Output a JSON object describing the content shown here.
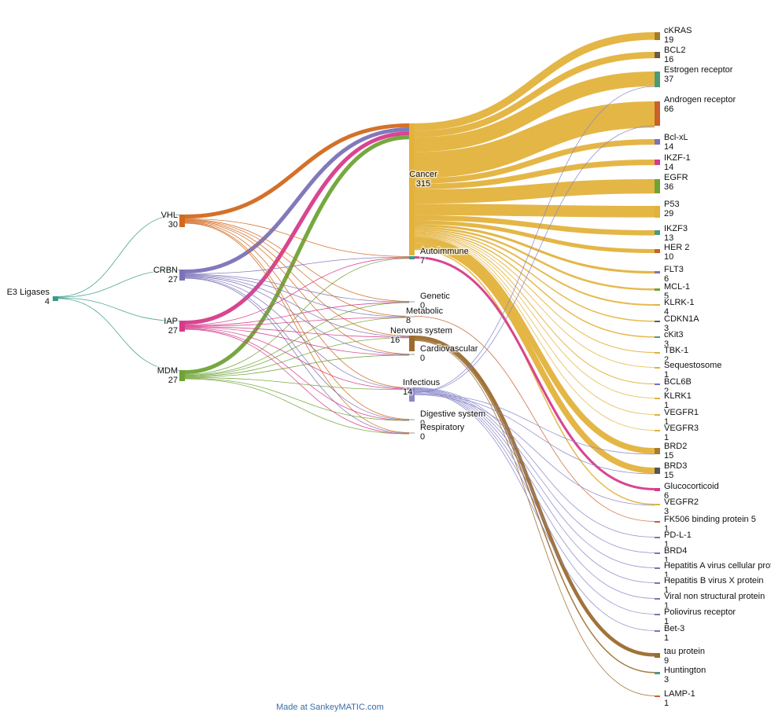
{
  "footer": {
    "credit": "Made at SankeyMATIC.com"
  },
  "diagram": {
    "type": "sankey",
    "nodes": [
      {
        "id": "e3",
        "label": "E3 Ligases",
        "value": "4",
        "color": "#3a9a8a"
      },
      {
        "id": "vhl",
        "label": "VHL",
        "value": "30",
        "color": "#d2691e"
      },
      {
        "id": "crbn",
        "label": "CRBN",
        "value": "27",
        "color": "#7b72b8"
      },
      {
        "id": "iap",
        "label": "IAP",
        "value": "27",
        "color": "#d63b8a"
      },
      {
        "id": "mdm",
        "label": "MDM",
        "value": "27",
        "color": "#6fa336"
      },
      {
        "id": "cancer",
        "label": "Cancer",
        "value": "315",
        "color": "#e3b23c"
      },
      {
        "id": "autoimmune",
        "label": "Autoimmune",
        "value": "7",
        "color": "#3a9a8a"
      },
      {
        "id": "genetic",
        "label": "Genetic",
        "value": "0",
        "color": "#cccccc"
      },
      {
        "id": "metabolic",
        "label": "Metabolic",
        "value": "8",
        "color": "#cccccc"
      },
      {
        "id": "nervous",
        "label": "Nervous system",
        "value": "16",
        "color": "#9b6b2e"
      },
      {
        "id": "cardio",
        "label": "Cardiovascular",
        "value": "0",
        "color": "#cccccc"
      },
      {
        "id": "infectious",
        "label": "Infectious",
        "value": "14",
        "color": "#8a87c8"
      },
      {
        "id": "digestive",
        "label": "Digestive system",
        "value": "0",
        "color": "#cccccc"
      },
      {
        "id": "respiratory",
        "label": "Respiratory",
        "value": "0",
        "color": "#cccccc"
      },
      {
        "id": "ckras",
        "label": "cKRAS",
        "value": "19",
        "color": "#a57c2a"
      },
      {
        "id": "bcl2",
        "label": "BCL2",
        "value": "16",
        "color": "#6b5a44"
      },
      {
        "id": "estrogen",
        "label": "Estrogen receptor",
        "value": "37",
        "color": "#4c9a78"
      },
      {
        "id": "androgen",
        "label": "Androgen receptor",
        "value": "66",
        "color": "#c8622a"
      },
      {
        "id": "bclxl",
        "label": "Bcl-xL",
        "value": "14",
        "color": "#7b72b8"
      },
      {
        "id": "ikzf1",
        "label": "IKZF-1",
        "value": "14",
        "color": "#d63b8a"
      },
      {
        "id": "egfr",
        "label": "EGFR",
        "value": "36",
        "color": "#6fa336"
      },
      {
        "id": "p53",
        "label": "P53",
        "value": "29",
        "color": "#e3b23c"
      },
      {
        "id": "ikzf3",
        "label": "IKZF3",
        "value": "13",
        "color": "#4c9a78"
      },
      {
        "id": "her2",
        "label": "HER 2",
        "value": "10",
        "color": "#c8622a"
      },
      {
        "id": "flt3",
        "label": "FLT3",
        "value": "6",
        "color": "#7b72b8"
      },
      {
        "id": "mcl1",
        "label": "MCL-1",
        "value": "5",
        "color": "#6fa336"
      },
      {
        "id": "klrk1a",
        "label": "KLRK-1",
        "value": "4",
        "color": "#e3b23c"
      },
      {
        "id": "cdkn1a",
        "label": "CDKN1A",
        "value": "3",
        "color": "#6b5a44"
      },
      {
        "id": "ckit3",
        "label": "cKit3",
        "value": "3",
        "color": "#4c9a78"
      },
      {
        "id": "tbk1",
        "label": "TBK-1",
        "value": "2",
        "color": "#e3b23c"
      },
      {
        "id": "seq",
        "label": "Sequestosome",
        "value": "1",
        "color": "#e3b23c"
      },
      {
        "id": "bcl6b",
        "label": "BCL6B",
        "value": "2",
        "color": "#7b72b8"
      },
      {
        "id": "klrk1b",
        "label": "KLRK1",
        "value": "1",
        "color": "#e3b23c"
      },
      {
        "id": "vegfr1",
        "label": "VEGFR1",
        "value": "1",
        "color": "#e3b23c"
      },
      {
        "id": "vegfr3",
        "label": "VEGFR3",
        "value": "1",
        "color": "#e3b23c"
      },
      {
        "id": "brd2",
        "label": "BRD2",
        "value": "15",
        "color": "#a57c2a"
      },
      {
        "id": "brd3",
        "label": "BRD3",
        "value": "15",
        "color": "#555555"
      },
      {
        "id": "gluco",
        "label": "Glucocorticoid",
        "value": "6",
        "color": "#d63b8a"
      },
      {
        "id": "vegfr2",
        "label": "VEGFR2",
        "value": "3",
        "color": "#e3b23c"
      },
      {
        "id": "fk506",
        "label": "FK506 binding protein 5",
        "value": "1",
        "color": "#c8622a"
      },
      {
        "id": "pdl1",
        "label": "PD-L-1",
        "value": "1",
        "color": "#7b72b8"
      },
      {
        "id": "brd4",
        "label": "BRD4",
        "value": "1",
        "color": "#7b72b8"
      },
      {
        "id": "hav",
        "label": "Hepatitis A virus cellular protein",
        "value": "1",
        "color": "#7b72b8"
      },
      {
        "id": "hbv",
        "label": "Hepatitis B virus X protein",
        "value": "1",
        "color": "#7b72b8"
      },
      {
        "id": "viral",
        "label": "Viral non structural protein",
        "value": "1",
        "color": "#7b72b8"
      },
      {
        "id": "polio",
        "label": "Poliovirus receptor",
        "value": "1",
        "color": "#7b72b8"
      },
      {
        "id": "bet3",
        "label": "Bet-3",
        "value": "1",
        "color": "#7b72b8"
      },
      {
        "id": "tau",
        "label": "tau protein",
        "value": "9",
        "color": "#9b6b2e"
      },
      {
        "id": "huntington",
        "label": "Huntington",
        "value": "3",
        "color": "#4c9a78"
      },
      {
        "id": "lamp1",
        "label": "LAMP-1",
        "value": "1",
        "color": "#c8622a"
      }
    ],
    "links": [
      {
        "from": "e3",
        "to": "vhl",
        "value": 1
      },
      {
        "from": "e3",
        "to": "crbn",
        "value": 1
      },
      {
        "from": "e3",
        "to": "iap",
        "value": 1
      },
      {
        "from": "e3",
        "to": "mdm",
        "value": 1
      },
      {
        "from": "vhl",
        "to": "cancer",
        "value": 10
      },
      {
        "from": "crbn",
        "to": "cancer",
        "value": 10
      },
      {
        "from": "iap",
        "to": "cancer",
        "value": 10
      },
      {
        "from": "mdm",
        "to": "cancer",
        "value": 10
      },
      {
        "from": "vhl",
        "to": "autoimmune",
        "value": 1
      },
      {
        "from": "vhl",
        "to": "genetic",
        "value": 0.3
      },
      {
        "from": "vhl",
        "to": "metabolic",
        "value": 0.5
      },
      {
        "from": "vhl",
        "to": "nervous",
        "value": 0.6
      },
      {
        "from": "vhl",
        "to": "cardio",
        "value": 0.3
      },
      {
        "from": "vhl",
        "to": "infectious",
        "value": 0.5
      },
      {
        "from": "vhl",
        "to": "digestive",
        "value": 0.3
      },
      {
        "from": "vhl",
        "to": "respiratory",
        "value": 0.3
      },
      {
        "from": "crbn",
        "to": "autoimmune",
        "value": 0.3
      },
      {
        "from": "crbn",
        "to": "genetic",
        "value": 0.3
      },
      {
        "from": "crbn",
        "to": "metabolic",
        "value": 0.5
      },
      {
        "from": "crbn",
        "to": "nervous",
        "value": 0.8
      },
      {
        "from": "crbn",
        "to": "cardio",
        "value": 0.3
      },
      {
        "from": "crbn",
        "to": "infectious",
        "value": 0.8
      },
      {
        "from": "crbn",
        "to": "digestive",
        "value": 0.3
      },
      {
        "from": "crbn",
        "to": "respiratory",
        "value": 0.3
      },
      {
        "from": "iap",
        "to": "autoimmune",
        "value": 0.3
      },
      {
        "from": "iap",
        "to": "genetic",
        "value": 0.3
      },
      {
        "from": "iap",
        "to": "metabolic",
        "value": 0.3
      },
      {
        "from": "iap",
        "to": "nervous",
        "value": 0.6
      },
      {
        "from": "iap",
        "to": "cardio",
        "value": 0.3
      },
      {
        "from": "iap",
        "to": "infectious",
        "value": 0.6
      },
      {
        "from": "iap",
        "to": "digestive",
        "value": 0.3
      },
      {
        "from": "iap",
        "to": "respiratory",
        "value": 0.3
      },
      {
        "from": "mdm",
        "to": "autoimmune",
        "value": 0.3
      },
      {
        "from": "mdm",
        "to": "genetic",
        "value": 0.3
      },
      {
        "from": "mdm",
        "to": "metabolic",
        "value": 0.3
      },
      {
        "from": "mdm",
        "to": "nervous",
        "value": 0.6
      },
      {
        "from": "mdm",
        "to": "cardio",
        "value": 0.3
      },
      {
        "from": "mdm",
        "to": "infectious",
        "value": 0.6
      },
      {
        "from": "mdm",
        "to": "digestive",
        "value": 0.3
      },
      {
        "from": "mdm",
        "to": "respiratory",
        "value": 0.3
      },
      {
        "from": "cancer",
        "to": "ckras",
        "value": 19
      },
      {
        "from": "cancer",
        "to": "bcl2",
        "value": 16
      },
      {
        "from": "cancer",
        "to": "estrogen",
        "value": 37
      },
      {
        "from": "cancer",
        "to": "androgen",
        "value": 66
      },
      {
        "from": "cancer",
        "to": "bclxl",
        "value": 14
      },
      {
        "from": "cancer",
        "to": "ikzf1",
        "value": 14
      },
      {
        "from": "cancer",
        "to": "egfr",
        "value": 36
      },
      {
        "from": "cancer",
        "to": "p53",
        "value": 29
      },
      {
        "from": "cancer",
        "to": "ikzf3",
        "value": 13
      },
      {
        "from": "cancer",
        "to": "her2",
        "value": 10
      },
      {
        "from": "cancer",
        "to": "flt3",
        "value": 6
      },
      {
        "from": "cancer",
        "to": "mcl1",
        "value": 5
      },
      {
        "from": "cancer",
        "to": "klrk1a",
        "value": 4
      },
      {
        "from": "cancer",
        "to": "cdkn1a",
        "value": 3
      },
      {
        "from": "cancer",
        "to": "ckit3",
        "value": 3
      },
      {
        "from": "cancer",
        "to": "tbk1",
        "value": 2
      },
      {
        "from": "cancer",
        "to": "seq",
        "value": 1
      },
      {
        "from": "cancer",
        "to": "bcl6b",
        "value": 2
      },
      {
        "from": "cancer",
        "to": "klrk1b",
        "value": 1
      },
      {
        "from": "cancer",
        "to": "vegfr1",
        "value": 1
      },
      {
        "from": "cancer",
        "to": "vegfr3",
        "value": 1
      },
      {
        "from": "cancer",
        "to": "brd2",
        "value": 15
      },
      {
        "from": "cancer",
        "to": "brd3",
        "value": 15
      },
      {
        "from": "cancer",
        "to": "vegfr2",
        "value": 3
      },
      {
        "from": "autoimmune",
        "to": "gluco",
        "value": 6
      },
      {
        "from": "metabolic",
        "to": "fk506",
        "value": 1
      },
      {
        "from": "nervous",
        "to": "tau",
        "value": 9
      },
      {
        "from": "nervous",
        "to": "huntington",
        "value": 3
      },
      {
        "from": "nervous",
        "to": "lamp1",
        "value": 1
      },
      {
        "from": "infectious",
        "to": "pdl1",
        "value": 1
      },
      {
        "from": "infectious",
        "to": "brd4",
        "value": 1
      },
      {
        "from": "infectious",
        "to": "hav",
        "value": 1
      },
      {
        "from": "infectious",
        "to": "hbv",
        "value": 1
      },
      {
        "from": "infectious",
        "to": "viral",
        "value": 1
      },
      {
        "from": "infectious",
        "to": "polio",
        "value": 1
      },
      {
        "from": "infectious",
        "to": "bet3",
        "value": 1
      },
      {
        "from": "infectious",
        "to": "estrogen",
        "value": 1
      },
      {
        "from": "infectious",
        "to": "androgen",
        "value": 1
      },
      {
        "from": "infectious",
        "to": "brd2",
        "value": 1
      },
      {
        "from": "infectious",
        "to": "brd3",
        "value": 1
      },
      {
        "from": "infectious",
        "to": "vegfr2",
        "value": 1
      }
    ]
  }
}
